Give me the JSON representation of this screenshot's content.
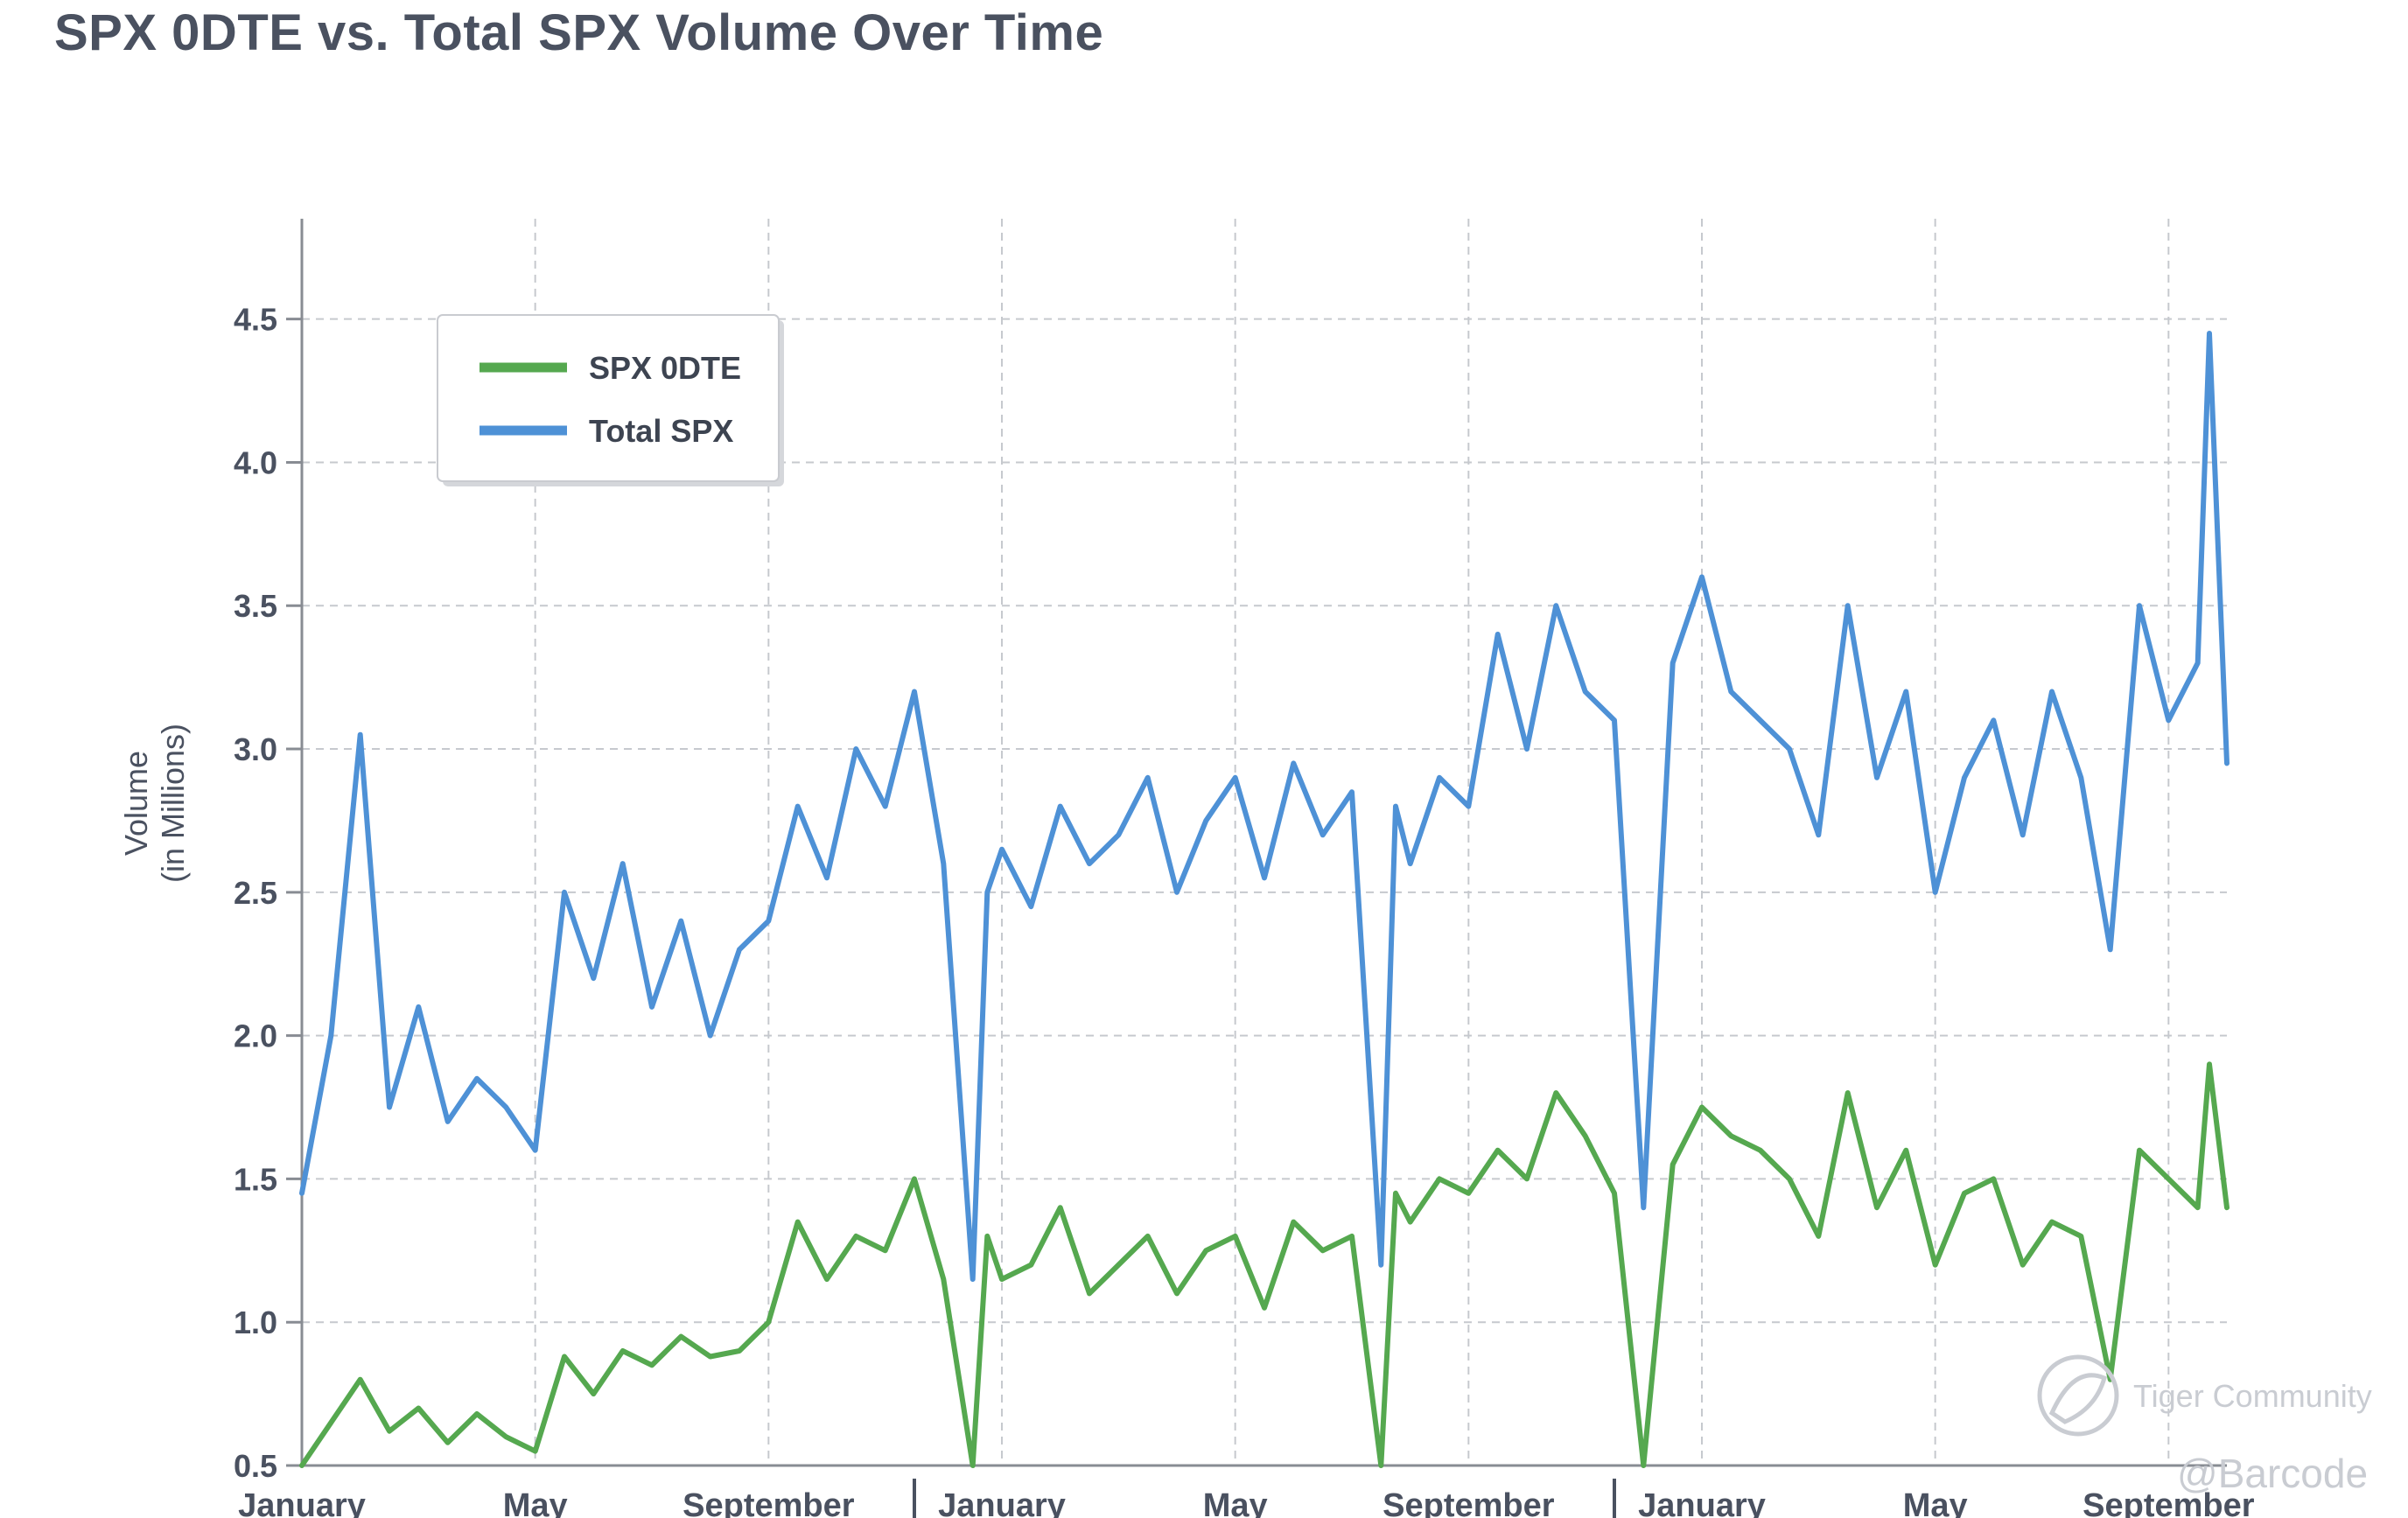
{
  "title": "SPX 0DTE vs. Total SPX Volume Over Time",
  "watermark": {
    "community": "Tiger Community",
    "handle": "@Barcode"
  },
  "chart_data": {
    "type": "line",
    "title": "SPX 0DTE vs. Total SPX Volume Over Time",
    "xlabel": "",
    "ylabel": "Volume\n(in Millions)",
    "ylabel_lines": [
      "Volume",
      "(in Millions)"
    ],
    "ylim": [
      0.5,
      4.85
    ],
    "yticks": [
      0.5,
      1.0,
      1.5,
      2.0,
      2.5,
      3.0,
      3.5,
      4.0,
      4.5
    ],
    "ytick_labels": [
      "0.5",
      "1.0",
      "1.5",
      "2.0",
      "2.5",
      "3.0",
      "3.5",
      "4.0",
      "4.5"
    ],
    "xlim": [
      0,
      33
    ],
    "xticks": [
      0,
      4,
      8,
      12,
      16,
      20,
      24,
      28,
      32
    ],
    "xtick_labels": [
      "January",
      "May",
      "September",
      "January",
      "May",
      "September",
      "January",
      "May",
      "September"
    ],
    "year_separators": [
      10.5,
      22.5
    ],
    "grid": true,
    "legend_position": "top-left",
    "colors": {
      "spx_0dte": "#55a84f",
      "total_spx": "#4e91d6"
    },
    "series": [
      {
        "name": "SPX 0DTE",
        "x": [
          0,
          0.5,
          1,
          1.5,
          2,
          2.5,
          3,
          3.5,
          4,
          4.5,
          5,
          5.5,
          6,
          6.5,
          7,
          7.5,
          8,
          8.5,
          9,
          9.5,
          10,
          10.5,
          11,
          11.5,
          11.75,
          12,
          12.5,
          13,
          13.5,
          14,
          14.5,
          15,
          15.5,
          16,
          16.5,
          17,
          17.5,
          18,
          18.5,
          18.75,
          19,
          19.5,
          20,
          20.5,
          21,
          21.5,
          22,
          22.5,
          23,
          23.5,
          24,
          24.5,
          25,
          25.5,
          26,
          26.5,
          27,
          27.5,
          28,
          28.5,
          29,
          29.5,
          30,
          30.5,
          31,
          31.5,
          32,
          32.5,
          32.7,
          33
        ],
        "values": [
          0.5,
          0.65,
          0.8,
          0.62,
          0.7,
          0.58,
          0.68,
          0.6,
          0.55,
          0.88,
          0.75,
          0.9,
          0.85,
          0.95,
          0.88,
          0.9,
          1.0,
          1.35,
          1.15,
          1.3,
          1.25,
          1.5,
          1.15,
          0.5,
          1.3,
          1.15,
          1.2,
          1.4,
          1.1,
          1.2,
          1.3,
          1.1,
          1.25,
          1.3,
          1.05,
          1.35,
          1.25,
          1.3,
          0.5,
          1.45,
          1.35,
          1.5,
          1.45,
          1.6,
          1.5,
          1.8,
          1.65,
          1.45,
          0.5,
          1.55,
          1.75,
          1.65,
          1.6,
          1.5,
          1.3,
          1.8,
          1.4,
          1.6,
          1.2,
          1.45,
          1.5,
          1.2,
          1.35,
          1.3,
          0.8,
          1.6,
          1.5,
          1.4,
          1.9,
          1.4
        ]
      },
      {
        "name": "Total SPX",
        "x": [
          0,
          0.5,
          1,
          1.5,
          2,
          2.5,
          3,
          3.5,
          4,
          4.5,
          5,
          5.5,
          6,
          6.5,
          7,
          7.5,
          8,
          8.5,
          9,
          9.5,
          10,
          10.5,
          11,
          11.5,
          11.75,
          12,
          12.5,
          13,
          13.5,
          14,
          14.5,
          15,
          15.5,
          16,
          16.5,
          17,
          17.5,
          18,
          18.5,
          18.75,
          19,
          19.5,
          20,
          20.5,
          21,
          21.5,
          22,
          22.5,
          23,
          23.5,
          24,
          24.5,
          25,
          25.5,
          26,
          26.5,
          27,
          27.5,
          28,
          28.5,
          29,
          29.5,
          30,
          30.5,
          31,
          31.5,
          32,
          32.5,
          32.7,
          33
        ],
        "values": [
          1.45,
          2.0,
          3.05,
          1.75,
          2.1,
          1.7,
          1.85,
          1.75,
          1.6,
          2.5,
          2.2,
          2.6,
          2.1,
          2.4,
          2.0,
          2.3,
          2.4,
          2.8,
          2.55,
          3.0,
          2.8,
          3.2,
          2.6,
          1.15,
          2.5,
          2.65,
          2.45,
          2.8,
          2.6,
          2.7,
          2.9,
          2.5,
          2.75,
          2.9,
          2.55,
          2.95,
          2.7,
          2.85,
          1.2,
          2.8,
          2.6,
          2.9,
          2.8,
          3.4,
          3.0,
          3.5,
          3.2,
          3.1,
          1.4,
          3.3,
          3.6,
          3.2,
          3.1,
          3.0,
          2.7,
          3.5,
          2.9,
          3.2,
          2.5,
          2.9,
          3.1,
          2.7,
          3.2,
          2.9,
          2.3,
          3.5,
          3.1,
          3.3,
          4.45,
          2.95
        ]
      }
    ]
  }
}
